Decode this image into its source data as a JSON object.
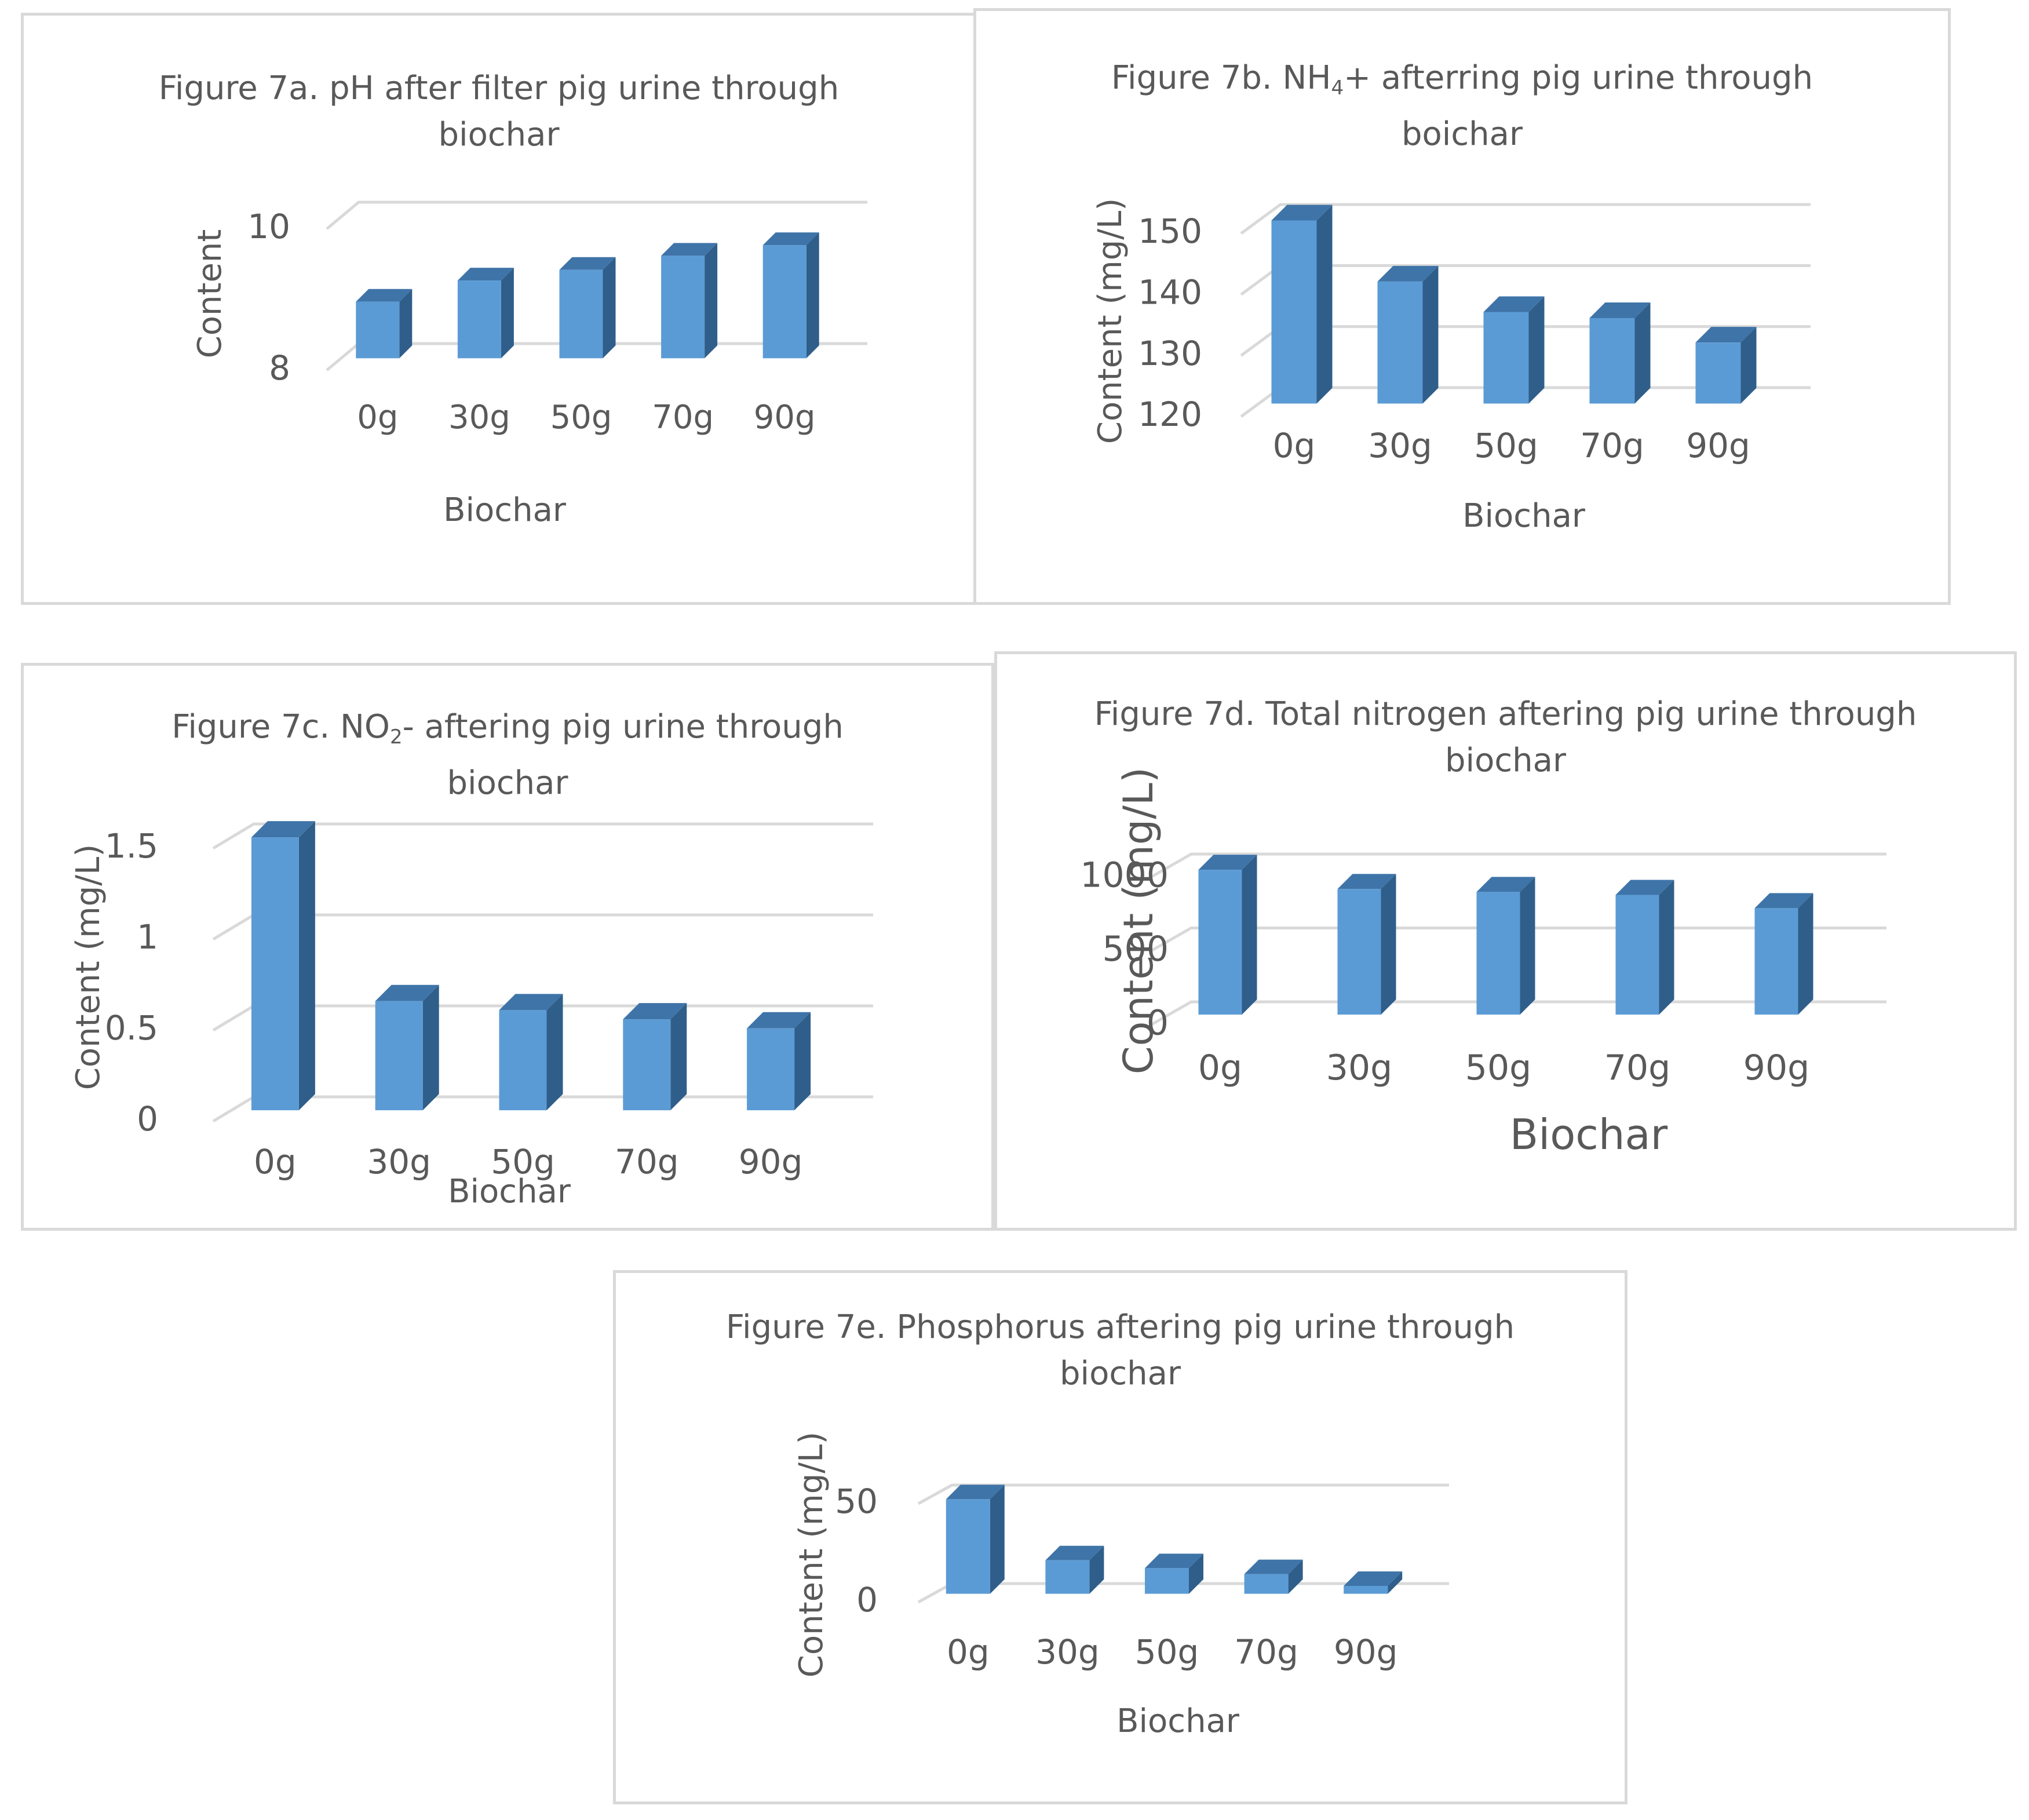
{
  "colors": {
    "bar_front": "#5b9bd5",
    "bar_side": "#2f5e8a",
    "bar_top": "#3f74a8",
    "gridline": "#d9d9d9",
    "text": "#595959"
  },
  "chart_data": [
    {
      "id": "a",
      "type": "bar",
      "title_before": "Figure 7a. pH after filter pig urine through",
      "title_sub": "",
      "title_after": "",
      "title_line2": "biochar",
      "categories": [
        "0g",
        "30g",
        "50g",
        "70g",
        "90g"
      ],
      "values": [
        8.8,
        9.1,
        9.25,
        9.45,
        9.6
      ],
      "ticks": [
        {
          "v": 8,
          "label": "8"
        },
        {
          "v": 10,
          "label": "10"
        }
      ],
      "ylim": [
        8,
        10
      ],
      "xlabel": "Biochar",
      "ylabel": "Content"
    },
    {
      "id": "b",
      "type": "bar",
      "title_before": "Figure 7b. NH",
      "title_sub": "4",
      "title_after": "+  afterring pig urine through",
      "title_line2": "boichar",
      "categories": [
        "0g",
        "30g",
        "50g",
        "70g",
        "90g"
      ],
      "values": [
        150,
        140,
        135,
        134,
        130
      ],
      "ticks": [
        {
          "v": 120,
          "label": "120"
        },
        {
          "v": 130,
          "label": "130"
        },
        {
          "v": 140,
          "label": "140"
        },
        {
          "v": 150,
          "label": "150"
        }
      ],
      "ylim": [
        120,
        150
      ],
      "xlabel": "Biochar",
      "ylabel": "Content (mg/L)"
    },
    {
      "id": "c",
      "type": "bar",
      "title_before": "Figure 7c. NO",
      "title_sub": "2",
      "title_after": "- aftering  pig urine through",
      "title_line2": "biochar",
      "categories": [
        "0g",
        "30g",
        "50g",
        "70g",
        "90g"
      ],
      "values": [
        1.5,
        0.6,
        0.55,
        0.5,
        0.45
      ],
      "ticks": [
        {
          "v": 0,
          "label": "0"
        },
        {
          "v": 0.5,
          "label": "0.5"
        },
        {
          "v": 1,
          "label": "1"
        },
        {
          "v": 1.5,
          "label": "1.5"
        }
      ],
      "ylim": [
        0,
        1.5
      ],
      "xlabel": "Biochar",
      "ylabel": "Content (mg/L)"
    },
    {
      "id": "d",
      "type": "bar",
      "title_before": "Figure 7d. Total nitrogen aftering pig urine through",
      "title_sub": "",
      "title_after": "",
      "title_line2": "biochar",
      "categories": [
        "0g",
        "30g",
        "50g",
        "70g",
        "90g"
      ],
      "values": [
        980,
        850,
        830,
        810,
        720
      ],
      "ticks": [
        {
          "v": 0,
          "label": "0"
        },
        {
          "v": 500,
          "label": "500"
        },
        {
          "v": 1000,
          "label": "1000"
        }
      ],
      "ylim": [
        0,
        1000
      ],
      "xlabel": "Biochar",
      "ylabel": "Content (mg/L)"
    },
    {
      "id": "e",
      "type": "bar",
      "title_before": "Figure 7e. Phosphorus aftering pig urine through",
      "title_sub": "",
      "title_after": "",
      "title_line2": "biochar",
      "categories": [
        "0g",
        "30g",
        "50g",
        "70g",
        "90g"
      ],
      "values": [
        48,
        17,
        13,
        10,
        4
      ],
      "ticks": [
        {
          "v": 0,
          "label": "0"
        },
        {
          "v": 50,
          "label": "50"
        }
      ],
      "ylim": [
        0,
        50
      ],
      "xlabel": "Biochar",
      "ylabel": "Content (mg/L)"
    }
  ]
}
